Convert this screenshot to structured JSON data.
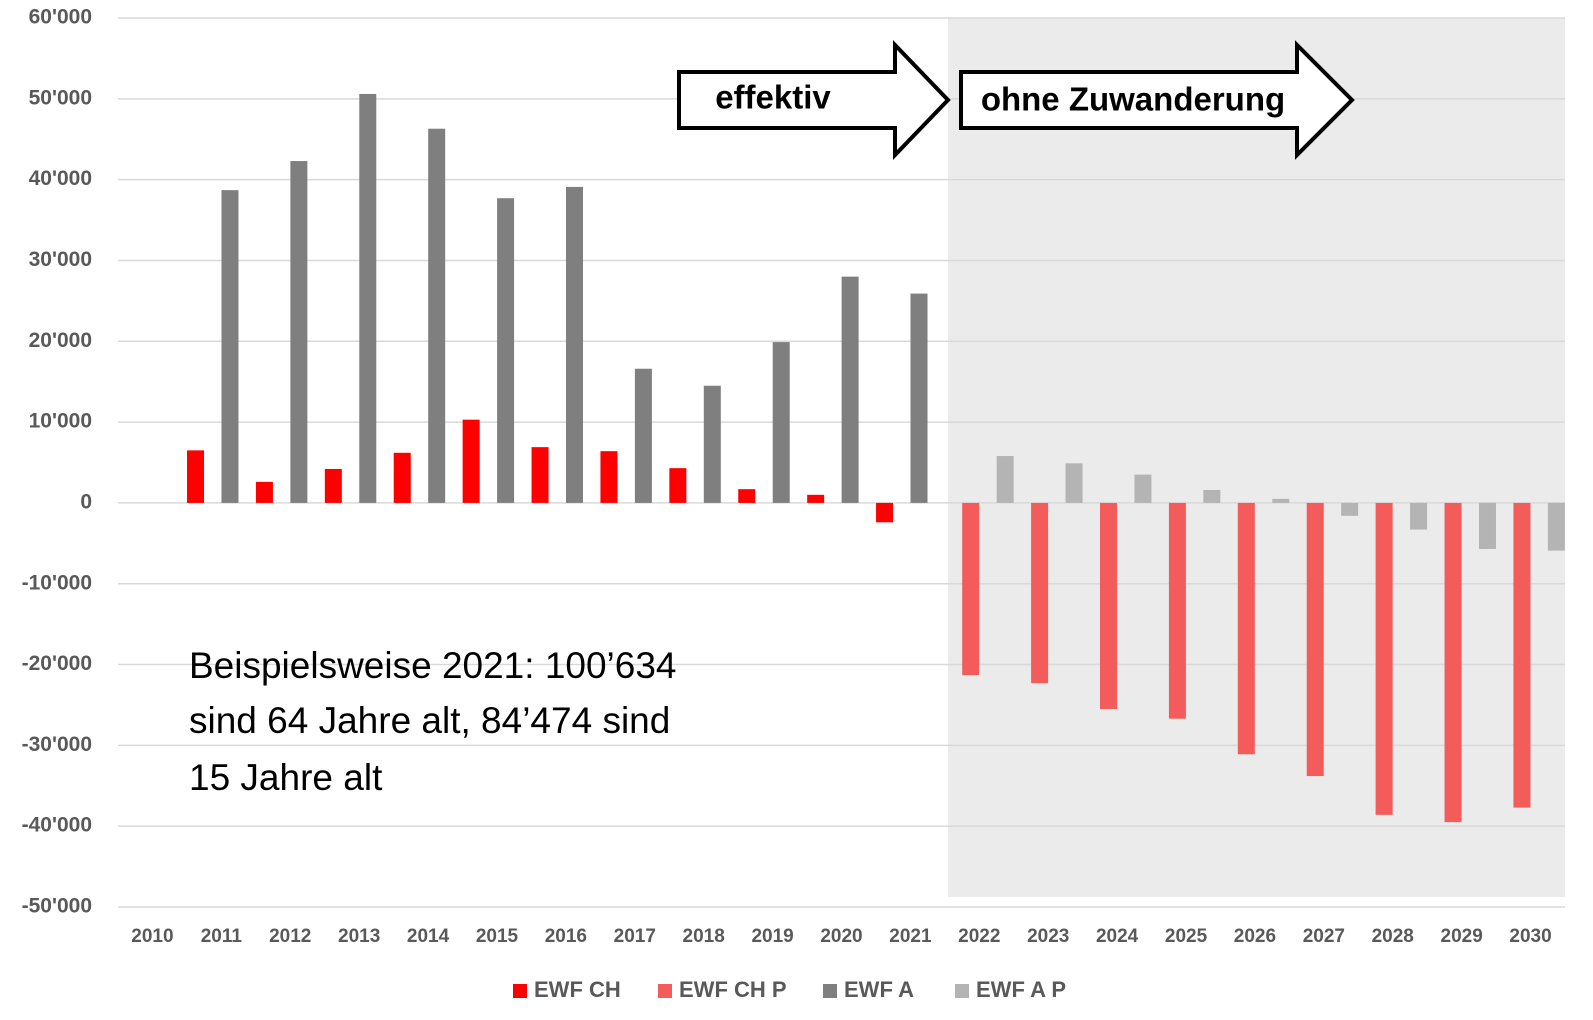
{
  "chart_data": {
    "type": "bar",
    "categories": [
      "2010",
      "2011",
      "2012",
      "2013",
      "2014",
      "2015",
      "2016",
      "2017",
      "2018",
      "2019",
      "2020",
      "2021",
      "2022",
      "2023",
      "2024",
      "2025",
      "2026",
      "2027",
      "2028",
      "2029",
      "2030"
    ],
    "series": [
      {
        "name": "EWF CH",
        "color": "#ff0000",
        "values": [
          null,
          6500,
          2600,
          4200,
          6200,
          10300,
          6900,
          6400,
          4300,
          1700,
          1000,
          -2400,
          null,
          null,
          null,
          null,
          null,
          null,
          null,
          null,
          null
        ]
      },
      {
        "name": "EWF CH P",
        "color": "#f45b5b",
        "values": [
          null,
          null,
          null,
          null,
          null,
          null,
          null,
          null,
          null,
          null,
          null,
          null,
          -21300,
          -22300,
          -25500,
          -26700,
          -31100,
          -33800,
          -38600,
          -39500,
          -37700
        ]
      },
      {
        "name": "EWF A",
        "color": "#7f7f7f",
        "values": [
          null,
          38700,
          42300,
          50600,
          46300,
          37700,
          39100,
          16600,
          14500,
          19900,
          28000,
          25900,
          null,
          null,
          null,
          null,
          null,
          null,
          null,
          null,
          null
        ]
      },
      {
        "name": "EWF A P",
        "color": "#b4b4b4",
        "values": [
          null,
          null,
          null,
          null,
          null,
          null,
          null,
          null,
          null,
          null,
          null,
          null,
          5800,
          4900,
          3500,
          1600,
          500,
          -1600,
          -3300,
          -5700,
          -5900
        ]
      }
    ],
    "ylim": [
      -50000,
      60000
    ],
    "yticks": [
      {
        "value": -50000,
        "label": "-50'000"
      },
      {
        "value": -40000,
        "label": "-40'000"
      },
      {
        "value": -30000,
        "label": "-30'000"
      },
      {
        "value": -20000,
        "label": "-20'000"
      },
      {
        "value": -10000,
        "label": "-10'000"
      },
      0,
      {
        "value": 10000,
        "label": "10'000"
      },
      {
        "value": 20000,
        "label": "20'000"
      },
      {
        "value": 30000,
        "label": "30'000"
      },
      {
        "value": 40000,
        "label": "40'000"
      },
      {
        "value": 50000,
        "label": "50'000"
      },
      {
        "value": 60000,
        "label": "60'000"
      }
    ],
    "grid": true,
    "legend": "bottom",
    "annotations": [
      "effektiv",
      "ohne Zuwanderung"
    ],
    "note": [
      "Beispielsweise 2021: 100’634",
      "sind 64 Jahre alt, 84’474 sind",
      "15 Jahre alt"
    ]
  }
}
